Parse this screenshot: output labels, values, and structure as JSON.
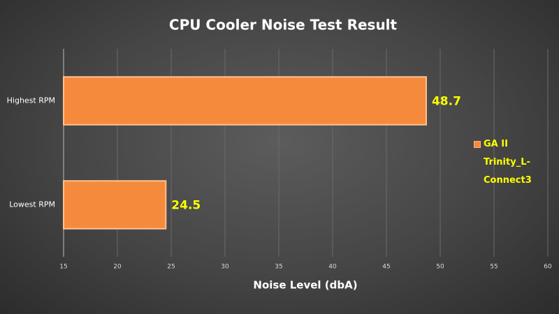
{
  "chart_data": {
    "type": "barh",
    "title": "CPU Cooler Noise Test Result",
    "x_label": "Noise Level (dbA)",
    "categories": [
      "Highest RPM",
      "Lowest RPM"
    ],
    "series": [
      {
        "name": "GA II Trinity_L-Connect3",
        "color": "#f58a3d",
        "values": [
          48.7,
          24.5
        ]
      }
    ],
    "xlim": [
      15,
      60
    ],
    "xticks": [
      15,
      20,
      25,
      30,
      35,
      40,
      45,
      50,
      55,
      60
    ],
    "grid": true,
    "legend": "right"
  }
}
